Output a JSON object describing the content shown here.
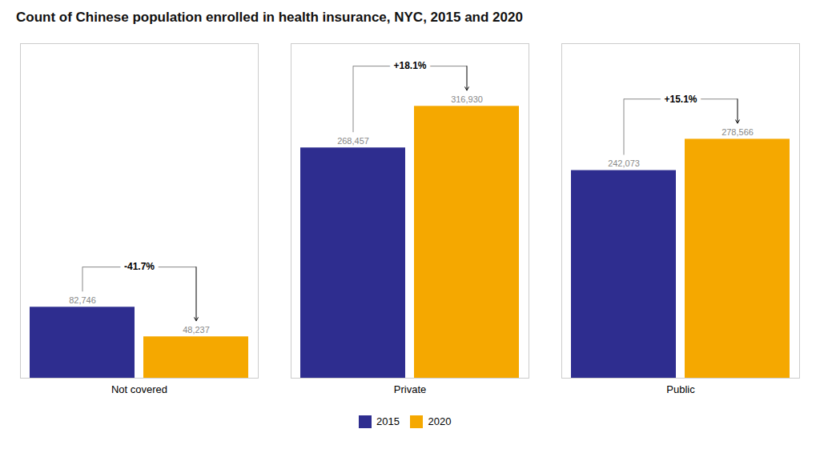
{
  "chart_data": {
    "type": "bar",
    "title": "Count of Chinese population enrolled in health insurance, NYC, 2015 and 2020",
    "categories": [
      "Not covered",
      "Private",
      "Public"
    ],
    "series": [
      {
        "name": "2015",
        "color": "#2E2D8F",
        "values": [
          82746,
          268457,
          242073
        ],
        "value_labels": [
          "82,746",
          "268,457",
          "242,073"
        ]
      },
      {
        "name": "2020",
        "color": "#F5A800",
        "values": [
          48237,
          316930,
          278566
        ],
        "value_labels": [
          "48,237",
          "316,930",
          "278,566"
        ]
      }
    ],
    "annotations": [
      "-41.7%",
      "+18.1%",
      "+15.1%"
    ],
    "ylim": [
      0,
      390000
    ],
    "yticks": [],
    "tick_labels": "x",
    "data_labels": true,
    "grid": false,
    "legend": "bottom"
  }
}
